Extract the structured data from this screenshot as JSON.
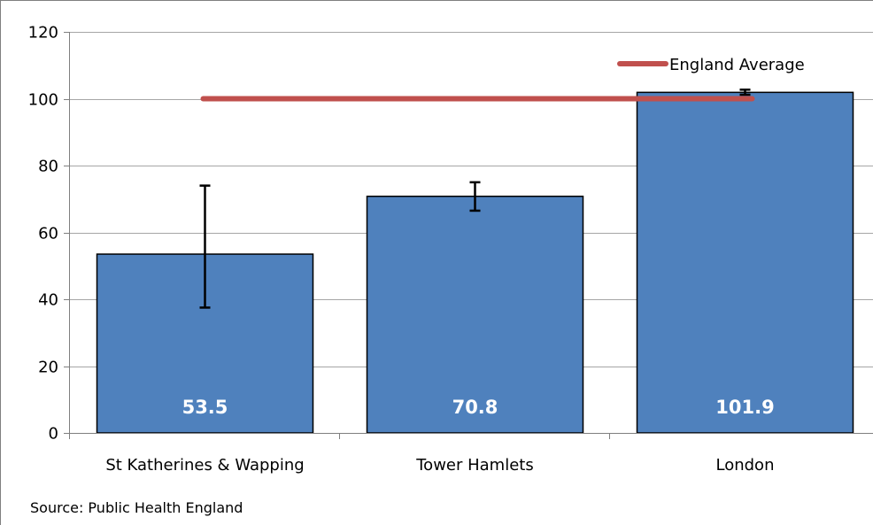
{
  "chart_data": {
    "type": "bar",
    "title": "",
    "xlabel": "",
    "ylabel": "",
    "categories": [
      "St Katherines & Wapping",
      "Tower Hamlets",
      "London"
    ],
    "values": [
      53.5,
      70.8,
      101.9
    ],
    "data_labels": [
      "53.5",
      "70.8",
      "101.9"
    ],
    "error_bars": [
      {
        "low": 37.5,
        "high": 74.0
      },
      {
        "low": 66.5,
        "high": 75.0
      },
      {
        "low": 101.2,
        "high": 102.7
      }
    ],
    "reference_line": {
      "name": "England Average",
      "value": 100
    },
    "ylim": [
      0,
      120
    ],
    "yticks": [
      0,
      20,
      40,
      60,
      80,
      100,
      120
    ],
    "grid": true,
    "legend_position": "top-right",
    "source": "Source: Public Health England",
    "colors": {
      "bar": "#4f81bd",
      "bar_border": "#000000",
      "reference_line": "#c0504d",
      "grid": "#a6a6a6"
    }
  }
}
